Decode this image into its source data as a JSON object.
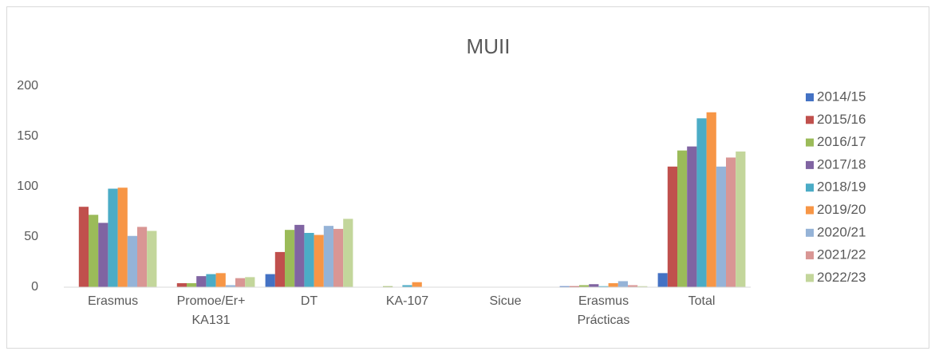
{
  "chart_data": {
    "type": "bar",
    "title": "MUII",
    "categories": [
      "Erasmus",
      "Promoe/Er+ KA131",
      "DT",
      "KA-107",
      "Sicue",
      "Erasmus Prácticas",
      "Total"
    ],
    "series": [
      {
        "name": "2014/15",
        "color": "#4472c4",
        "values": [
          0,
          0,
          13,
          0,
          0,
          1,
          14
        ]
      },
      {
        "name": "2015/16",
        "color": "#c0504d",
        "values": [
          80,
          4,
          35,
          0,
          0,
          1,
          120
        ]
      },
      {
        "name": "2016/17",
        "color": "#9bbb59",
        "values": [
          72,
          4,
          57,
          1,
          0,
          2,
          136
        ]
      },
      {
        "name": "2017/18",
        "color": "#8064a2",
        "values": [
          64,
          11,
          62,
          0,
          0,
          3,
          140
        ]
      },
      {
        "name": "2018/19",
        "color": "#4bacc6",
        "values": [
          98,
          13,
          54,
          2,
          0,
          1,
          168
        ]
      },
      {
        "name": "2019/20",
        "color": "#f79646",
        "values": [
          99,
          14,
          52,
          5,
          0,
          4,
          174
        ]
      },
      {
        "name": "2020/21",
        "color": "#95b3d7",
        "values": [
          51,
          2,
          61,
          0,
          0,
          6,
          120
        ]
      },
      {
        "name": "2021/22",
        "color": "#d99694",
        "values": [
          60,
          9,
          58,
          0,
          0,
          2,
          129
        ]
      },
      {
        "name": "2022/23",
        "color": "#c3d69b",
        "values": [
          56,
          10,
          68,
          0,
          0,
          1,
          135
        ]
      }
    ],
    "ylim": [
      0,
      200
    ],
    "yticks": [
      0,
      50,
      100,
      150,
      200
    ],
    "grid": false,
    "legend": "right"
  }
}
